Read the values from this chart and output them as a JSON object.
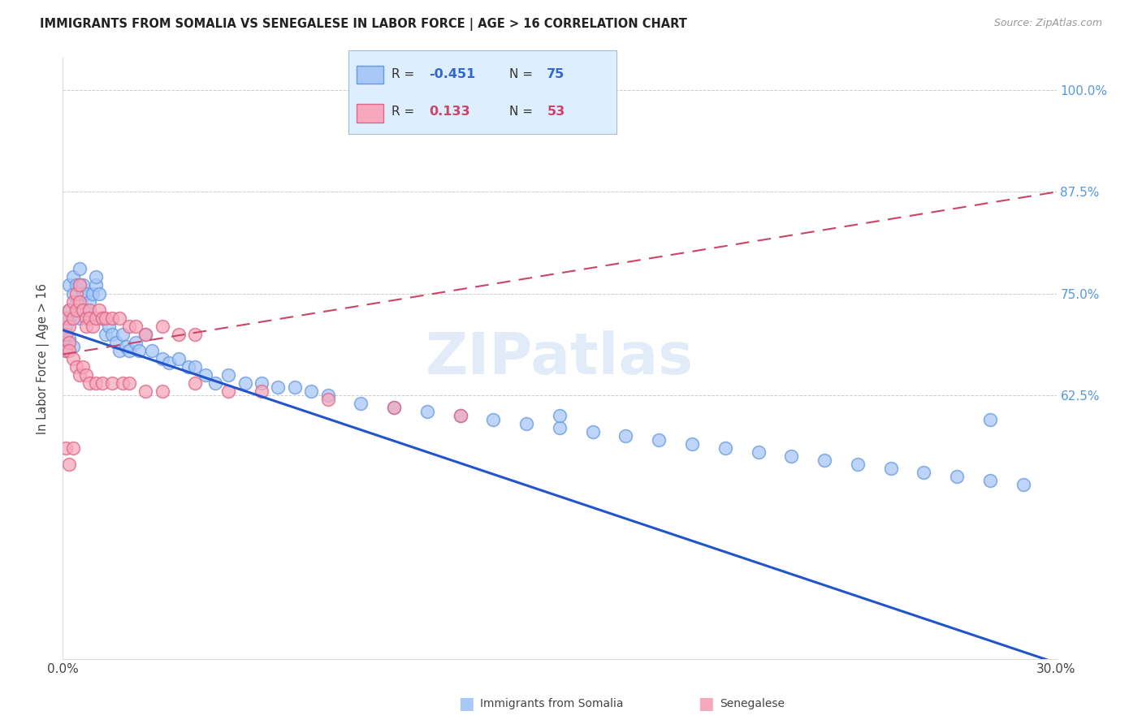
{
  "title": "IMMIGRANTS FROM SOMALIA VS SENEGALESE IN LABOR FORCE | AGE > 16 CORRELATION CHART",
  "source": "Source: ZipAtlas.com",
  "ylabel": "In Labor Force | Age > 16",
  "xlim": [
    0.0,
    0.3
  ],
  "ylim": [
    0.3,
    1.04
  ],
  "xticks": [
    0.0,
    0.05,
    0.1,
    0.15,
    0.2,
    0.25,
    0.3
  ],
  "xtick_labels": [
    "0.0%",
    "",
    "",
    "",
    "",
    "",
    "30.0%"
  ],
  "ytick_vals": [
    0.625,
    0.75,
    0.875,
    1.0
  ],
  "ytick_labels": [
    "62.5%",
    "75.0%",
    "87.5%",
    "100.0%"
  ],
  "somalia_color": "#a8c8f8",
  "somalia_edge_color": "#6699dd",
  "senegal_color": "#f8a8bc",
  "senegal_edge_color": "#dd6688",
  "somalia_line_color": "#2255cc",
  "senegal_line_color": "#cc4466",
  "watermark": "ZIPatlas",
  "watermark_color": "#d0e0f4",
  "somalia_R": -0.451,
  "somalia_N": 75,
  "senegal_R": 0.133,
  "senegal_N": 53,
  "somalia_line_y0": 0.705,
  "somalia_line_y1": 0.295,
  "senegal_line_y0": 0.675,
  "senegal_line_y1": 0.875,
  "somalia_scatter_x": [
    0.001,
    0.001,
    0.001,
    0.002,
    0.002,
    0.002,
    0.002,
    0.003,
    0.003,
    0.003,
    0.004,
    0.004,
    0.005,
    0.005,
    0.005,
    0.006,
    0.006,
    0.007,
    0.007,
    0.008,
    0.008,
    0.009,
    0.01,
    0.01,
    0.011,
    0.012,
    0.013,
    0.014,
    0.015,
    0.016,
    0.017,
    0.018,
    0.019,
    0.02,
    0.022,
    0.023,
    0.025,
    0.027,
    0.03,
    0.032,
    0.035,
    0.038,
    0.04,
    0.043,
    0.046,
    0.05,
    0.055,
    0.06,
    0.065,
    0.07,
    0.075,
    0.08,
    0.09,
    0.1,
    0.11,
    0.12,
    0.13,
    0.14,
    0.15,
    0.16,
    0.17,
    0.18,
    0.19,
    0.2,
    0.21,
    0.22,
    0.23,
    0.24,
    0.25,
    0.26,
    0.27,
    0.28,
    0.29,
    0.15,
    0.28
  ],
  "somalia_scatter_y": [
    0.7,
    0.71,
    0.68,
    0.695,
    0.72,
    0.73,
    0.76,
    0.685,
    0.75,
    0.77,
    0.74,
    0.76,
    0.72,
    0.76,
    0.78,
    0.75,
    0.76,
    0.73,
    0.75,
    0.72,
    0.74,
    0.75,
    0.76,
    0.77,
    0.75,
    0.72,
    0.7,
    0.71,
    0.7,
    0.69,
    0.68,
    0.7,
    0.685,
    0.68,
    0.69,
    0.68,
    0.7,
    0.68,
    0.67,
    0.665,
    0.67,
    0.66,
    0.66,
    0.65,
    0.64,
    0.65,
    0.64,
    0.64,
    0.635,
    0.635,
    0.63,
    0.625,
    0.615,
    0.61,
    0.605,
    0.6,
    0.595,
    0.59,
    0.585,
    0.58,
    0.575,
    0.57,
    0.565,
    0.56,
    0.555,
    0.55,
    0.545,
    0.54,
    0.535,
    0.53,
    0.525,
    0.52,
    0.515,
    0.6,
    0.595
  ],
  "senegal_scatter_x": [
    0.001,
    0.001,
    0.001,
    0.002,
    0.002,
    0.002,
    0.003,
    0.003,
    0.004,
    0.004,
    0.005,
    0.005,
    0.006,
    0.007,
    0.007,
    0.008,
    0.008,
    0.009,
    0.01,
    0.011,
    0.012,
    0.013,
    0.015,
    0.017,
    0.02,
    0.022,
    0.025,
    0.03,
    0.035,
    0.04,
    0.002,
    0.003,
    0.004,
    0.005,
    0.006,
    0.007,
    0.008,
    0.01,
    0.012,
    0.015,
    0.018,
    0.02,
    0.025,
    0.03,
    0.04,
    0.05,
    0.06,
    0.08,
    0.1,
    0.12,
    0.001,
    0.002,
    0.003
  ],
  "senegal_scatter_y": [
    0.72,
    0.7,
    0.68,
    0.73,
    0.71,
    0.69,
    0.74,
    0.72,
    0.75,
    0.73,
    0.74,
    0.76,
    0.73,
    0.72,
    0.71,
    0.73,
    0.72,
    0.71,
    0.72,
    0.73,
    0.72,
    0.72,
    0.72,
    0.72,
    0.71,
    0.71,
    0.7,
    0.71,
    0.7,
    0.7,
    0.68,
    0.67,
    0.66,
    0.65,
    0.66,
    0.65,
    0.64,
    0.64,
    0.64,
    0.64,
    0.64,
    0.64,
    0.63,
    0.63,
    0.64,
    0.63,
    0.63,
    0.62,
    0.61,
    0.6,
    0.56,
    0.54,
    0.56
  ]
}
